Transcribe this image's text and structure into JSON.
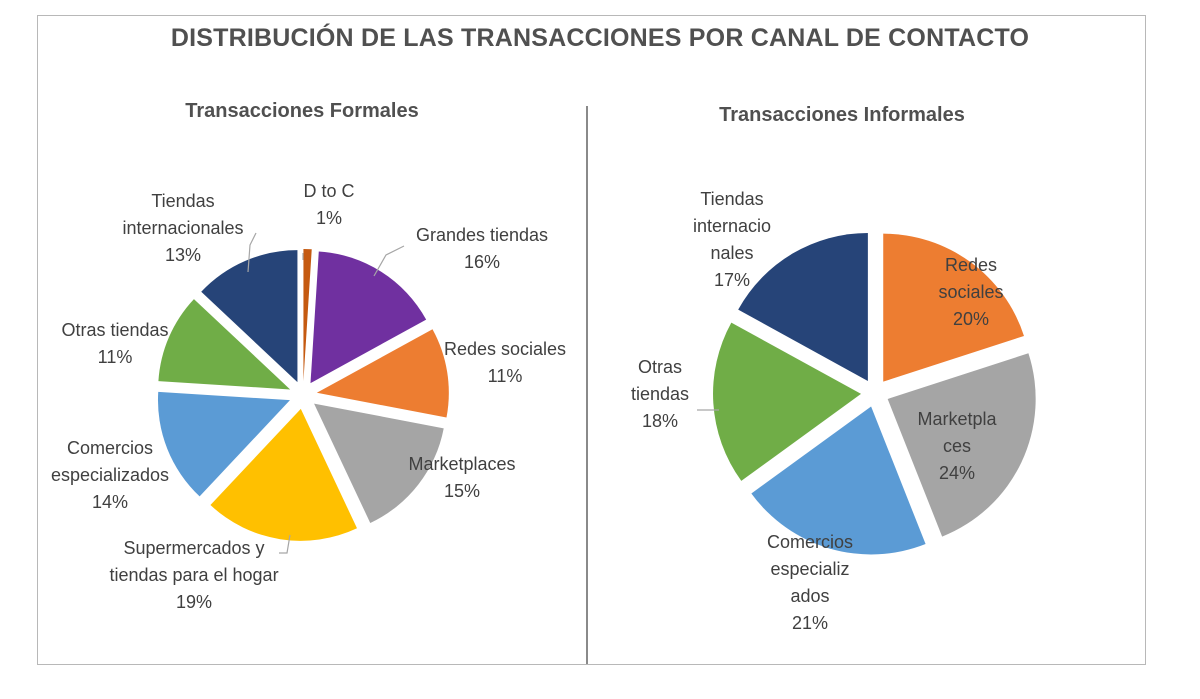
{
  "title": "DISTRIBUCIÓN DE LAS TRANSACCIONES  POR CANAL DE CONTACTO",
  "chart_data": [
    {
      "type": "pie",
      "title": "Transacciones Formales",
      "categories": [
        "D to C",
        "Grandes tiendas",
        "Redes sociales",
        "Marketplaces",
        "Supermercados y tiendas para el hogar",
        "Comercios especializados",
        "Otras tiendas",
        "Tiendas internacionales"
      ],
      "values": [
        1,
        16,
        11,
        15,
        19,
        14,
        11,
        13
      ],
      "value_labels": [
        "1%",
        "16%",
        "11%",
        "15%",
        "19%",
        "14%",
        "11%",
        "13%"
      ],
      "label_lines": [
        [
          "D to C"
        ],
        [
          "Grandes tiendas"
        ],
        [
          "Redes sociales"
        ],
        [
          "Marketplaces"
        ],
        [
          "Supermercados y",
          "tiendas para el hogar"
        ],
        [
          "Comercios",
          "especializados"
        ],
        [
          "Otras tiendas"
        ],
        [
          "Tiendas",
          "internacionales"
        ]
      ],
      "colors": [
        "#C55A11",
        "#7030A0",
        "#ED7D31",
        "#A5A5A5",
        "#FFC000",
        "#5B9BD5",
        "#70AD47",
        "#264478"
      ],
      "exploded": true
    },
    {
      "type": "pie",
      "title": "Transacciones Informales",
      "categories": [
        "Redes sociales",
        "Marketplaces",
        "Comercios especializados",
        "Otras tiendas",
        "Tiendas internacionales"
      ],
      "values": [
        20,
        24,
        21,
        18,
        17
      ],
      "value_labels": [
        "20%",
        "24%",
        "21%",
        "18%",
        "17%"
      ],
      "label_lines": [
        [
          "Redes",
          "sociales"
        ],
        [
          "Marketpla",
          "ces"
        ],
        [
          "Comercios",
          "especializ",
          "ados"
        ],
        [
          "Otras",
          "tiendas"
        ],
        [
          "Tiendas",
          "internacio",
          "nales"
        ]
      ],
      "colors": [
        "#ED7D31",
        "#A5A5A5",
        "#5B9BD5",
        "#70AD47",
        "#264478"
      ],
      "exploded": true
    }
  ]
}
